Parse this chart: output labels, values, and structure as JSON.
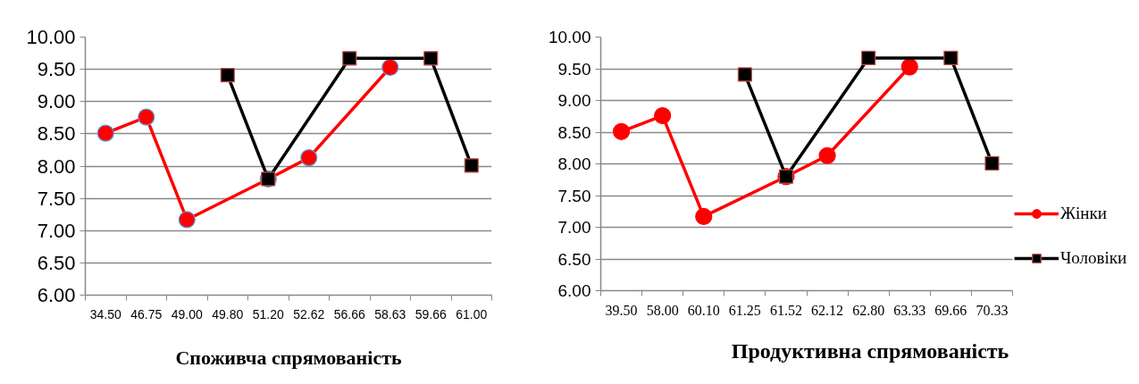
{
  "chart_data": [
    {
      "type": "line",
      "title": "Споживча спрямованість",
      "categories": [
        "34.50",
        "46.75",
        "49.00",
        "49.80",
        "51.20",
        "52.62",
        "56.66",
        "58.63",
        "59.66",
        "61.00"
      ],
      "series": [
        {
          "color": "#ff0000",
          "marker": "circle",
          "values": [
            8.51,
            8.76,
            7.17,
            null,
            7.8,
            8.13,
            null,
            9.53,
            null,
            null
          ]
        },
        {
          "color": "#000000",
          "marker": "square",
          "values": [
            null,
            null,
            null,
            9.41,
            7.8,
            null,
            9.67,
            null,
            9.67,
            8.01
          ]
        }
      ],
      "ylim": [
        6,
        10
      ],
      "yticks": [
        {
          "value": 6,
          "label": "6.00"
        },
        {
          "value": 6.5,
          "label": "6.50"
        },
        {
          "value": 7,
          "label": "7.00"
        },
        {
          "value": 7.5,
          "label": "7.50"
        },
        {
          "value": 8,
          "label": "8.00"
        },
        {
          "value": 8.5,
          "label": "8.50"
        },
        {
          "value": 9,
          "label": "9.00"
        },
        {
          "value": 9.5,
          "label": "9.50"
        },
        {
          "value": 10,
          "label": "10.00"
        }
      ],
      "grid": "y",
      "line_style": "solid"
    },
    {
      "type": "line",
      "title": "Продуктивна спрямованість",
      "categories": [
        "39.50",
        "58.00",
        "60.10",
        "61.25",
        "61.52",
        "62.12",
        "62.80",
        "63.33",
        "69.66",
        "70.33"
      ],
      "series": [
        {
          "name": "Жінки",
          "color": "#ff0000",
          "marker": "circle",
          "values": [
            8.51,
            8.76,
            7.17,
            null,
            7.8,
            8.13,
            null,
            9.53,
            null,
            null
          ]
        },
        {
          "name": "Чоловіки",
          "color": "#000000",
          "marker": "square",
          "values": [
            null,
            null,
            null,
            9.41,
            7.8,
            null,
            9.67,
            null,
            9.67,
            8.01
          ]
        }
      ],
      "ylim": [
        6,
        10
      ],
      "yticks": [
        {
          "value": 6,
          "label": "6.00"
        },
        {
          "value": 6.5,
          "label": "6.50"
        },
        {
          "value": 7,
          "label": "7.00"
        },
        {
          "value": 7.5,
          "label": "7.50"
        },
        {
          "value": 8,
          "label": "8.00"
        },
        {
          "value": 8.5,
          "label": "8.50"
        },
        {
          "value": 9,
          "label": "9.00"
        },
        {
          "value": 9.5,
          "label": "9.50"
        },
        {
          "value": 10,
          "label": "10.00"
        }
      ],
      "grid": "y",
      "legend": "right",
      "line_style": "solid"
    }
  ]
}
